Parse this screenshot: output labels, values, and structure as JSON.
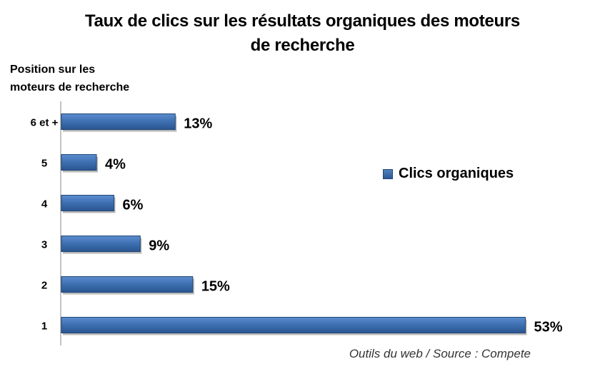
{
  "chart_data": {
    "type": "bar",
    "orientation": "horizontal",
    "title_lines": [
      "Taux de clics sur les résultats organiques des moteurs",
      "de recherche"
    ],
    "ylabel_lines": [
      "Position sur les",
      "moteurs de recherche"
    ],
    "categories": [
      "6 et +",
      "5",
      "4",
      "3",
      "2",
      "1"
    ],
    "series": [
      {
        "name": "Clics organiques",
        "values": [
          13,
          4,
          6,
          9,
          15,
          53
        ],
        "color": "#3d6fb0"
      }
    ],
    "data_labels": [
      "13%",
      "4%",
      "6%",
      "9%",
      "15%",
      "53%"
    ],
    "xlim": [
      0,
      55
    ],
    "legend": "right",
    "grid": false
  },
  "source": "Outils du web / Source : Compete"
}
